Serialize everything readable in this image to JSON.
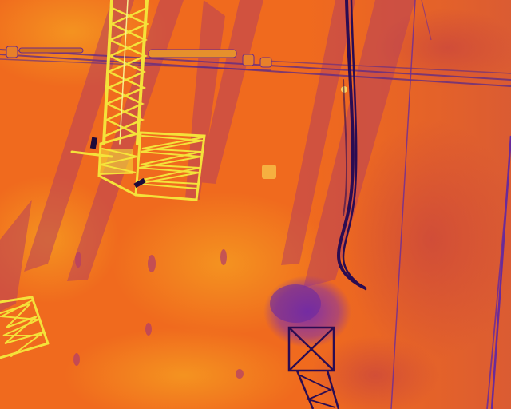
{
  "image": {
    "kind": "aerial thermal infrared photograph",
    "palette": "ironbow",
    "colors": {
      "ground_base": "#f06a1e",
      "ground_warm": "#f28a1c",
      "ground_cool": "#d4502e",
      "shadow": "#a83a66",
      "cold_object": "#6a2a9a",
      "very_cold": "#2a0c52",
      "hot": "#f6e83a",
      "hottest": "#fffbb0"
    }
  },
  "objects": [
    {
      "name": "hot-lattice-tower-top-left",
      "temperature": "hot"
    },
    {
      "name": "hot-tower-base-frame",
      "temperature": "hot"
    },
    {
      "name": "hot-lattice-tower-lower-left",
      "temperature": "hot"
    },
    {
      "name": "cold-tower-base-lower-center",
      "temperature": "cold"
    },
    {
      "name": "power-cable-bundle",
      "temperature": "very-cold"
    },
    {
      "name": "horizontal-transmission-lines",
      "temperature": "cold"
    },
    {
      "name": "insulator-strings",
      "temperature": "warm"
    },
    {
      "name": "tower-shadows",
      "temperature": "cool"
    }
  ]
}
